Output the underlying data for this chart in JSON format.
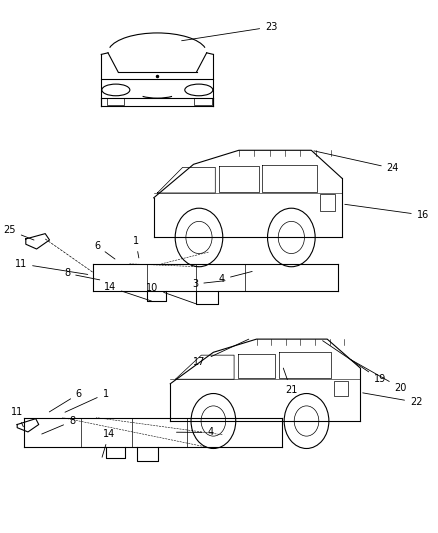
{
  "background_color": "#ffffff",
  "line_color": "#000000",
  "text_color": "#000000",
  "figure_width": 4.39,
  "figure_height": 5.33,
  "dpi": 100
}
